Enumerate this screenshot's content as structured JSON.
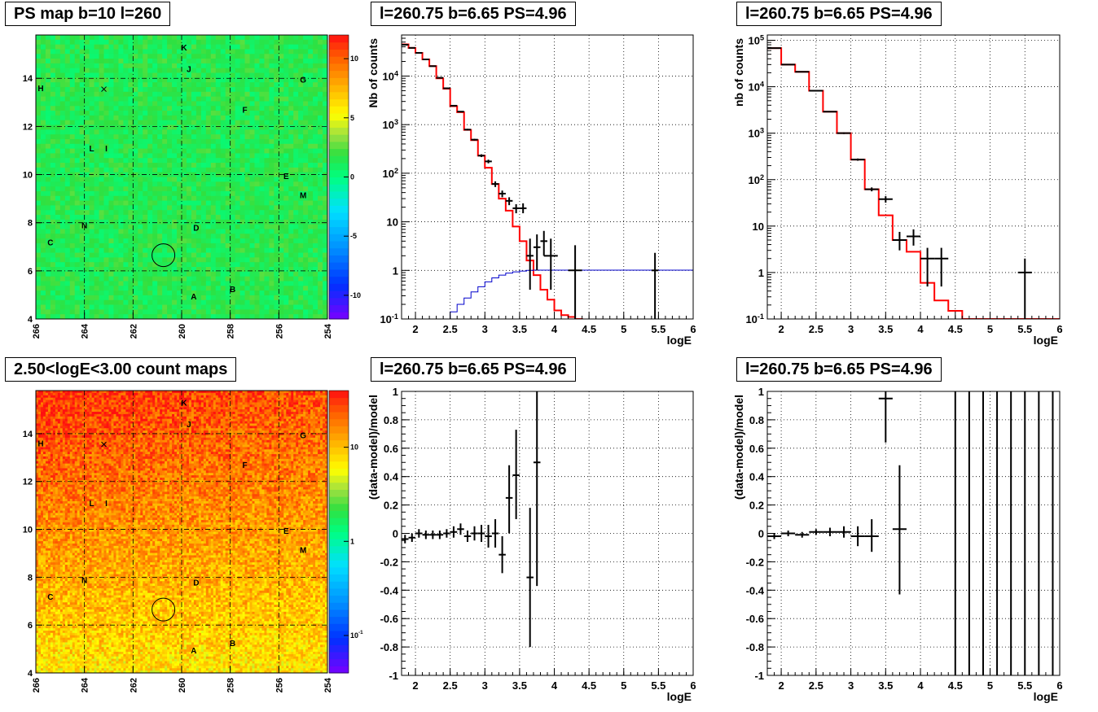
{
  "panels": {
    "map1": {
      "title": "PS map b=10 l=260"
    },
    "spec1": {
      "title": "l=260.75 b=6.65 PS=4.96"
    },
    "spec2": {
      "title": "l=260.75 b=6.65 PS=4.96"
    },
    "map2": {
      "title": "2.50<logE<3.00 count maps"
    },
    "res1": {
      "title": "l=260.75 b=6.65 PS=4.96"
    },
    "res2": {
      "title": "l=260.75 b=6.65 PS=4.96"
    }
  },
  "chart_data": [
    {
      "id": "map1",
      "type": "heatmap",
      "title": "PS map b=10 l=260",
      "xlim": [
        266,
        254
      ],
      "ylim": [
        4,
        15.8
      ],
      "x_ticks": [
        "266",
        "264",
        "262",
        "260",
        "258",
        "256",
        "254"
      ],
      "y_ticks": [
        "4",
        "6",
        "8",
        "10",
        "12",
        "14"
      ],
      "colorbar": {
        "scale": "linear",
        "range": [
          -12,
          12
        ],
        "tick_labels": [
          "10",
          "5",
          "0",
          "-5",
          "-10"
        ],
        "tick_values": [
          10,
          5,
          0,
          -5,
          -10
        ]
      },
      "colors": {
        "background": "#33dd44"
      },
      "marker_circle": {
        "l": 260.75,
        "b": 6.65
      },
      "marker_cross": {
        "l": 263.2,
        "b": 13.55
      },
      "sources": [
        {
          "name": "K",
          "l": 259.9,
          "b": 15.3
        },
        {
          "name": "J",
          "l": 259.7,
          "b": 14.4
        },
        {
          "name": "G",
          "l": 255.0,
          "b": 13.95
        },
        {
          "name": "H",
          "l": 265.8,
          "b": 13.6
        },
        {
          "name": "F",
          "l": 257.4,
          "b": 12.7
        },
        {
          "name": "L",
          "l": 263.7,
          "b": 11.1
        },
        {
          "name": "I",
          "l": 263.1,
          "b": 11.1
        },
        {
          "name": "E",
          "l": 255.7,
          "b": 9.95
        },
        {
          "name": "M",
          "l": 255.0,
          "b": 9.15
        },
        {
          "name": "N",
          "l": 264.0,
          "b": 7.9
        },
        {
          "name": "D",
          "l": 259.4,
          "b": 7.8
        },
        {
          "name": "C",
          "l": 265.4,
          "b": 7.2
        },
        {
          "name": "B",
          "l": 257.9,
          "b": 5.25
        },
        {
          "name": "A",
          "l": 259.5,
          "b": 4.95
        }
      ]
    },
    {
      "id": "spec1",
      "type": "line",
      "title": "l=260.75 b=6.65 PS=4.96",
      "xlabel": "logE",
      "ylabel": "Nb of counts",
      "yscale": "log",
      "xlim": [
        1.8,
        6
      ],
      "ylim": [
        0.1,
        70000
      ],
      "x_ticks": [
        "2",
        "2.5",
        "3",
        "3.5",
        "4",
        "4.5",
        "5",
        "5.5",
        "6"
      ],
      "y_ticks": [
        "10^{-1}",
        "1",
        "10",
        "10^{2}",
        "10^{3}",
        "10^{4}"
      ],
      "colors": {
        "model": "#ff0000",
        "psf": "#0000cc",
        "data": "#000000"
      },
      "series": [
        {
          "style": "step",
          "color": "#ff0000",
          "bin_edges": [
            1.8,
            1.9,
            2.0,
            2.1,
            2.2,
            2.3,
            2.4,
            2.5,
            2.6,
            2.7,
            2.8,
            2.9,
            3.0,
            3.1,
            3.2,
            3.3,
            3.4,
            3.5,
            3.6,
            3.7,
            3.8,
            3.9,
            4.0,
            4.1,
            4.2,
            4.3,
            4.4,
            6.0
          ],
          "values": [
            45000,
            38000,
            30000,
            22000,
            16000,
            9000,
            5500,
            2400,
            1800,
            780,
            480,
            230,
            130,
            60,
            30,
            17,
            8,
            4,
            1.6,
            0.8,
            0.4,
            0.25,
            0.15,
            0.12,
            0.11,
            0.1,
            0.09
          ]
        },
        {
          "style": "step",
          "color": "#0000cc",
          "bin_edges": [
            1.8,
            1.9,
            2.0,
            2.1,
            2.2,
            2.3,
            2.4,
            2.5,
            2.6,
            2.7,
            2.8,
            2.9,
            3.0,
            3.1,
            3.2,
            3.3,
            3.4,
            3.5,
            3.6,
            3.7,
            3.8,
            3.9,
            4.0,
            4.1,
            4.2,
            4.3,
            4.4,
            6.0
          ],
          "values": [
            0.05,
            0.05,
            0.05,
            0.06,
            0.07,
            0.08,
            0.1,
            0.14,
            0.2,
            0.27,
            0.36,
            0.46,
            0.58,
            0.7,
            0.8,
            0.88,
            0.93,
            0.97,
            1.0,
            1.01,
            1.01,
            1.01,
            1.01,
            1.01,
            1.01,
            1.01,
            1.01
          ]
        }
      ],
      "points": [
        {
          "x": 1.85,
          "y": 44000,
          "xe": 0.05,
          "lo": 43500,
          "hi": 44500
        },
        {
          "x": 1.95,
          "y": 38000,
          "xe": 0.05,
          "lo": 37500,
          "hi": 38500
        },
        {
          "x": 2.05,
          "y": 30000,
          "xe": 0.05,
          "lo": 29600,
          "hi": 30400
        },
        {
          "x": 2.15,
          "y": 22000,
          "xe": 0.05,
          "lo": 21700,
          "hi": 22300
        },
        {
          "x": 2.25,
          "y": 16000,
          "xe": 0.05,
          "lo": 15800,
          "hi": 16200
        },
        {
          "x": 2.35,
          "y": 9200,
          "xe": 0.05,
          "lo": 9000,
          "hi": 9400
        },
        {
          "x": 2.45,
          "y": 5600,
          "xe": 0.05,
          "lo": 5450,
          "hi": 5750
        },
        {
          "x": 2.55,
          "y": 2450,
          "xe": 0.05,
          "lo": 2400,
          "hi": 2500
        },
        {
          "x": 2.65,
          "y": 1850,
          "xe": 0.05,
          "lo": 1800,
          "hi": 1900
        },
        {
          "x": 2.75,
          "y": 790,
          "xe": 0.05,
          "lo": 760,
          "hi": 820
        },
        {
          "x": 2.85,
          "y": 490,
          "xe": 0.05,
          "lo": 470,
          "hi": 510
        },
        {
          "x": 2.95,
          "y": 230,
          "xe": 0.05,
          "lo": 215,
          "hi": 245
        },
        {
          "x": 3.05,
          "y": 175,
          "xe": 0.05,
          "lo": 160,
          "hi": 190
        },
        {
          "x": 3.15,
          "y": 60,
          "xe": 0.05,
          "lo": 52,
          "hi": 68
        },
        {
          "x": 3.25,
          "y": 38,
          "xe": 0.05,
          "lo": 32,
          "hi": 44
        },
        {
          "x": 3.35,
          "y": 27,
          "xe": 0.05,
          "lo": 22,
          "hi": 32
        },
        {
          "x": 3.45,
          "y": 19,
          "xe": 0.05,
          "lo": 15,
          "hi": 23
        },
        {
          "x": 3.55,
          "y": 19,
          "xe": 0.05,
          "lo": 15,
          "hi": 24
        },
        {
          "x": 3.65,
          "y": 2,
          "xe": 0.05,
          "lo": 0.4,
          "hi": 4.5
        },
        {
          "x": 3.75,
          "y": 3,
          "xe": 0.05,
          "lo": 1,
          "hi": 5.5
        },
        {
          "x": 3.85,
          "y": 4,
          "xe": 0.05,
          "lo": 2,
          "hi": 6.5
        },
        {
          "x": 3.95,
          "y": 2,
          "xe": 0.1,
          "lo": 0.4,
          "hi": 4.5
        },
        {
          "x": 4.3,
          "y": 1,
          "xe": 0.1,
          "lo": 0.1,
          "hi": 3.3
        },
        {
          "x": 5.45,
          "y": 1,
          "xe": 0.05,
          "lo": 0.1,
          "hi": 2.3
        }
      ]
    },
    {
      "id": "spec2",
      "type": "line",
      "title": "l=260.75 b=6.65 PS=4.96",
      "xlabel": "logE",
      "ylabel": "nb of counts",
      "yscale": "log",
      "xlim": [
        1.8,
        6
      ],
      "ylim": [
        0.1,
        130000
      ],
      "x_ticks": [
        "2",
        "2.5",
        "3",
        "3.5",
        "4",
        "4.5",
        "5",
        "5.5",
        "6"
      ],
      "y_ticks": [
        "10^{-1}",
        "1",
        "10",
        "10^{2}",
        "10^{3}",
        "10^{4}",
        "10^{5}"
      ],
      "colors": {
        "model": "#ff0000",
        "data": "#000000"
      },
      "series": [
        {
          "style": "step",
          "color": "#ff0000",
          "bin_edges": [
            1.8,
            2.0,
            2.2,
            2.4,
            2.6,
            2.8,
            3.0,
            3.2,
            3.4,
            3.6,
            3.8,
            4.0,
            4.2,
            4.4,
            4.6,
            6.0
          ],
          "values": [
            68000,
            30000,
            21000,
            8200,
            2900,
            1000,
            270,
            62,
            17,
            5,
            2.8,
            0.6,
            0.25,
            0.15,
            0.1
          ]
        }
      ],
      "points": [
        {
          "x": 1.9,
          "y": 68000,
          "xe": 0.1,
          "lo": 67500,
          "hi": 68500
        },
        {
          "x": 2.1,
          "y": 30000,
          "xe": 0.1,
          "lo": 29700,
          "hi": 30300
        },
        {
          "x": 2.3,
          "y": 21000,
          "xe": 0.1,
          "lo": 20700,
          "hi": 21300
        },
        {
          "x": 2.5,
          "y": 8200,
          "xe": 0.1,
          "lo": 8050,
          "hi": 8350
        },
        {
          "x": 2.7,
          "y": 2900,
          "xe": 0.1,
          "lo": 2820,
          "hi": 2980
        },
        {
          "x": 2.9,
          "y": 1000,
          "xe": 0.1,
          "lo": 960,
          "hi": 1040
        },
        {
          "x": 3.1,
          "y": 270,
          "xe": 0.1,
          "lo": 255,
          "hi": 285
        },
        {
          "x": 3.3,
          "y": 62,
          "xe": 0.1,
          "lo": 56,
          "hi": 68
        },
        {
          "x": 3.5,
          "y": 38,
          "xe": 0.1,
          "lo": 32,
          "hi": 44
        },
        {
          "x": 3.7,
          "y": 5,
          "xe": 0.1,
          "lo": 3,
          "hi": 7.5
        },
        {
          "x": 3.9,
          "y": 6,
          "xe": 0.1,
          "lo": 3.8,
          "hi": 8.5
        },
        {
          "x": 4.1,
          "y": 2,
          "xe": 0.1,
          "lo": 0.5,
          "hi": 3.4
        },
        {
          "x": 4.3,
          "y": 2,
          "xe": 0.1,
          "lo": 0.5,
          "hi": 3.4
        },
        {
          "x": 5.5,
          "y": 1,
          "xe": 0.1,
          "lo": 0.1,
          "hi": 2
        }
      ]
    },
    {
      "id": "map2",
      "type": "heatmap",
      "title": "2.50<logE<3.00 count maps",
      "xlim": [
        266,
        254
      ],
      "ylim": [
        4,
        15.8
      ],
      "x_ticks": [
        "266",
        "264",
        "262",
        "260",
        "258",
        "256",
        "254"
      ],
      "y_ticks": [
        "4",
        "6",
        "8",
        "10",
        "12",
        "14"
      ],
      "colorbar": {
        "scale": "log",
        "range": [
          0.04,
          40
        ],
        "tick_labels": [
          "10",
          "1",
          "10^{-1}"
        ],
        "tick_values": [
          10,
          1,
          0.1
        ]
      },
      "colors": {
        "background": "#ff8800"
      },
      "marker_circle": {
        "l": 260.75,
        "b": 6.65
      },
      "marker_cross": {
        "l": 263.2,
        "b": 13.55
      },
      "sources": [
        {
          "name": "K",
          "l": 259.9,
          "b": 15.3
        },
        {
          "name": "J",
          "l": 259.7,
          "b": 14.4
        },
        {
          "name": "G",
          "l": 255.0,
          "b": 13.95
        },
        {
          "name": "H",
          "l": 265.8,
          "b": 13.6
        },
        {
          "name": "F",
          "l": 257.4,
          "b": 12.7
        },
        {
          "name": "L",
          "l": 263.7,
          "b": 11.1
        },
        {
          "name": "I",
          "l": 263.1,
          "b": 11.1
        },
        {
          "name": "E",
          "l": 255.7,
          "b": 9.95
        },
        {
          "name": "M",
          "l": 255.0,
          "b": 9.15
        },
        {
          "name": "N",
          "l": 264.0,
          "b": 7.9
        },
        {
          "name": "D",
          "l": 259.4,
          "b": 7.8
        },
        {
          "name": "C",
          "l": 265.4,
          "b": 7.2
        },
        {
          "name": "B",
          "l": 257.9,
          "b": 5.25
        },
        {
          "name": "A",
          "l": 259.5,
          "b": 4.95
        }
      ]
    },
    {
      "id": "res1",
      "type": "scatter",
      "title": "l=260.75 b=6.65 PS=4.96",
      "xlabel": "logE",
      "ylabel": "(data-model)/model",
      "xlim": [
        1.8,
        6
      ],
      "ylim": [
        -1,
        1
      ],
      "x_ticks": [
        "2",
        "2.5",
        "3",
        "3.5",
        "4",
        "4.5",
        "5",
        "5.5",
        "6"
      ],
      "y_ticks": [
        "-1",
        "-0.8",
        "-0.6",
        "-0.4",
        "-0.2",
        "0",
        "0.2",
        "0.4",
        "0.6",
        "0.8",
        "1"
      ],
      "points": [
        {
          "x": 1.85,
          "y": -0.04,
          "xe": 0.05,
          "lo": -0.07,
          "hi": -0.01
        },
        {
          "x": 1.95,
          "y": -0.03,
          "xe": 0.05,
          "lo": -0.06,
          "hi": 0.0
        },
        {
          "x": 2.05,
          "y": 0.0,
          "xe": 0.05,
          "lo": -0.03,
          "hi": 0.03
        },
        {
          "x": 2.15,
          "y": -0.01,
          "xe": 0.05,
          "lo": -0.04,
          "hi": 0.02
        },
        {
          "x": 2.25,
          "y": -0.01,
          "xe": 0.05,
          "lo": -0.04,
          "hi": 0.02
        },
        {
          "x": 2.35,
          "y": -0.01,
          "xe": 0.05,
          "lo": -0.04,
          "hi": 0.02
        },
        {
          "x": 2.45,
          "y": 0.0,
          "xe": 0.05,
          "lo": -0.03,
          "hi": 0.03
        },
        {
          "x": 2.55,
          "y": 0.01,
          "xe": 0.05,
          "lo": -0.03,
          "hi": 0.05
        },
        {
          "x": 2.65,
          "y": 0.03,
          "xe": 0.05,
          "lo": -0.01,
          "hi": 0.07
        },
        {
          "x": 2.75,
          "y": -0.02,
          "xe": 0.05,
          "lo": -0.06,
          "hi": 0.02
        },
        {
          "x": 2.85,
          "y": 0.0,
          "xe": 0.05,
          "lo": -0.05,
          "hi": 0.05
        },
        {
          "x": 2.95,
          "y": 0.0,
          "xe": 0.05,
          "lo": -0.06,
          "hi": 0.06
        },
        {
          "x": 3.05,
          "y": -0.02,
          "xe": 0.05,
          "lo": -0.1,
          "hi": 0.06
        },
        {
          "x": 3.15,
          "y": 0.0,
          "xe": 0.05,
          "lo": -0.1,
          "hi": 0.1
        },
        {
          "x": 3.25,
          "y": -0.15,
          "xe": 0.05,
          "lo": -0.28,
          "hi": -0.02
        },
        {
          "x": 3.35,
          "y": 0.25,
          "xe": 0.05,
          "lo": 0.0,
          "hi": 0.48
        },
        {
          "x": 3.45,
          "y": 0.41,
          "xe": 0.05,
          "lo": 0.1,
          "hi": 0.73
        },
        {
          "x": 3.65,
          "y": -0.31,
          "xe": 0.05,
          "lo": -0.8,
          "hi": 0.18
        },
        {
          "x": 3.75,
          "y": 0.5,
          "xe": 0.05,
          "lo": -0.37,
          "hi": 1.0
        }
      ]
    },
    {
      "id": "res2",
      "type": "scatter",
      "title": "l=260.75 b=6.65 PS=4.96",
      "xlabel": "logE",
      "ylabel": "(data-model)/model",
      "xlim": [
        1.8,
        6
      ],
      "ylim": [
        -1,
        1
      ],
      "x_ticks": [
        "2",
        "2.5",
        "3",
        "3.5",
        "4",
        "4.5",
        "5",
        "5.5",
        "6"
      ],
      "y_ticks": [
        "-1",
        "-0.8",
        "-0.6",
        "-0.4",
        "-0.2",
        "0",
        "0.2",
        "0.4",
        "0.6",
        "0.8",
        "1"
      ],
      "points": [
        {
          "x": 1.9,
          "y": -0.02,
          "xe": 0.1,
          "lo": -0.04,
          "hi": 0.0
        },
        {
          "x": 2.1,
          "y": 0.0,
          "xe": 0.1,
          "lo": -0.02,
          "hi": 0.02
        },
        {
          "x": 2.3,
          "y": -0.01,
          "xe": 0.1,
          "lo": -0.03,
          "hi": 0.01
        },
        {
          "x": 2.5,
          "y": 0.01,
          "xe": 0.1,
          "lo": -0.01,
          "hi": 0.03
        },
        {
          "x": 2.7,
          "y": 0.01,
          "xe": 0.1,
          "lo": -0.02,
          "hi": 0.04
        },
        {
          "x": 2.9,
          "y": 0.01,
          "xe": 0.1,
          "lo": -0.03,
          "hi": 0.05
        },
        {
          "x": 3.1,
          "y": -0.02,
          "xe": 0.1,
          "lo": -0.09,
          "hi": 0.05
        },
        {
          "x": 3.3,
          "y": -0.02,
          "xe": 0.1,
          "lo": -0.13,
          "hi": 0.1
        },
        {
          "x": 3.5,
          "y": 0.95,
          "xe": 0.1,
          "lo": 0.64,
          "hi": 1.0
        },
        {
          "x": 3.7,
          "y": 0.03,
          "xe": 0.1,
          "lo": -0.43,
          "hi": 0.48
        },
        {
          "x": 4.5,
          "y": 0,
          "xe": 0,
          "lo": -1,
          "hi": 1
        },
        {
          "x": 4.7,
          "y": 0,
          "xe": 0,
          "lo": -1,
          "hi": 1
        },
        {
          "x": 4.9,
          "y": 0,
          "xe": 0,
          "lo": -1,
          "hi": 1
        },
        {
          "x": 5.1,
          "y": 0,
          "xe": 0,
          "lo": -1,
          "hi": 1
        },
        {
          "x": 5.3,
          "y": 0,
          "xe": 0,
          "lo": -1,
          "hi": 1
        },
        {
          "x": 5.5,
          "y": 0,
          "xe": 0,
          "lo": -1,
          "hi": 1
        },
        {
          "x": 5.7,
          "y": 0,
          "xe": 0,
          "lo": -1,
          "hi": 1
        },
        {
          "x": 5.9,
          "y": 0,
          "xe": 0,
          "lo": -1,
          "hi": 1
        }
      ]
    }
  ]
}
